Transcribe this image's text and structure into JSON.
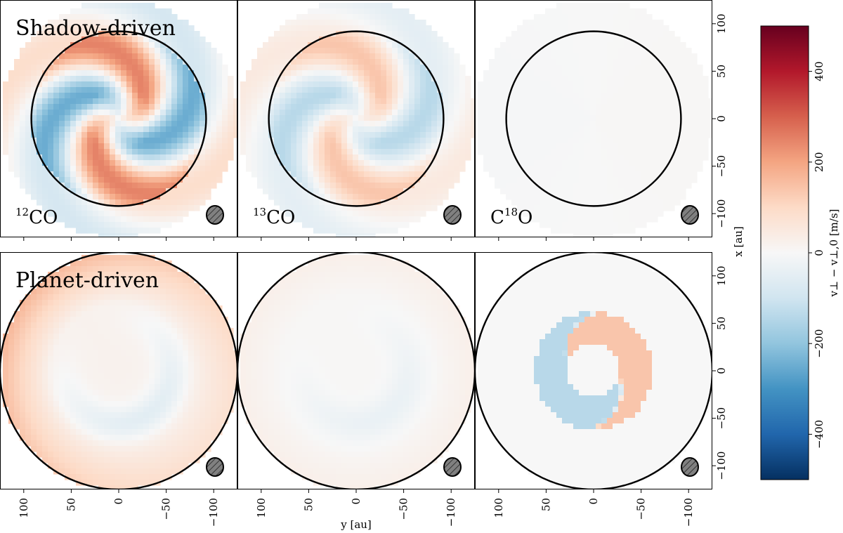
{
  "chart_data": {
    "type": "heatmap",
    "row_titles": [
      "Shadow-driven",
      "Planet-driven"
    ],
    "panel_labels": [
      {
        "pre": "",
        "sup": "12",
        "post": "CO"
      },
      {
        "pre": "",
        "sup": "13",
        "post": "CO"
      },
      {
        "pre": "C",
        "sup": "18",
        "post": "O"
      }
    ],
    "xlabel": "y [au]",
    "ylabel": "x [au]",
    "x_ticks": [
      100,
      50,
      0,
      -50,
      -100
    ],
    "y_ticks": [
      100,
      50,
      0,
      -50,
      -100
    ],
    "xlim": [
      125,
      -125
    ],
    "ylim": [
      -125,
      125
    ],
    "colorbar": {
      "label": "v⊥ − v⊥,0 [m/s]",
      "min": -500,
      "max": 500,
      "ticks": [
        -400,
        -200,
        0,
        200,
        400
      ],
      "colormap": "RdBu_r",
      "colors": [
        "#053061",
        "#2166ac",
        "#4393c3",
        "#92c5de",
        "#d1e5f0",
        "#f7f7f7",
        "#fddbc7",
        "#f4a582",
        "#d6604d",
        "#b2182b",
        "#67001f"
      ]
    },
    "panels": [
      {
        "row": "Shadow-driven",
        "tracer": "12CO",
        "disk_radius_au": 125,
        "circle_radius_au": 92,
        "pattern": "two-armed spiral",
        "arms": 2,
        "amplitude_ms": 250,
        "center_velocity_ms": 0
      },
      {
        "row": "Shadow-driven",
        "tracer": "13CO",
        "disk_radius_au": 125,
        "circle_radius_au": 92,
        "pattern": "two-armed spiral",
        "arms": 2,
        "amplitude_ms": 140,
        "center_velocity_ms": 0
      },
      {
        "row": "Shadow-driven",
        "tracer": "C18O",
        "disk_radius_au": 125,
        "circle_radius_au": 92,
        "pattern": "nearly uniform",
        "arms": 0,
        "amplitude_ms": 5,
        "center_velocity_ms": 0
      },
      {
        "row": "Planet-driven",
        "tracer": "12CO",
        "disk_radius_au": 125,
        "circle_radius_au": 125,
        "pattern": "outer positive ring with faint inner arcs",
        "arms": 1,
        "amplitude_ms": 150,
        "center_velocity_ms": 20
      },
      {
        "row": "Planet-driven",
        "tracer": "13CO",
        "disk_radius_au": 125,
        "circle_radius_au": 125,
        "pattern": "faint arcs",
        "arms": 1,
        "amplitude_ms": 40,
        "center_velocity_ms": 5
      },
      {
        "row": "Planet-driven",
        "tracer": "C18O",
        "disk_radius_au": 125,
        "circle_radius_au": 125,
        "pattern": "annulus 30–60 au",
        "arms": 1,
        "amplitude_ms": 140,
        "center_velocity_ms": 0
      }
    ],
    "beam": {
      "shape": "hatched ellipse",
      "position": "bottom-right",
      "color": "#808080"
    },
    "grid": false
  }
}
